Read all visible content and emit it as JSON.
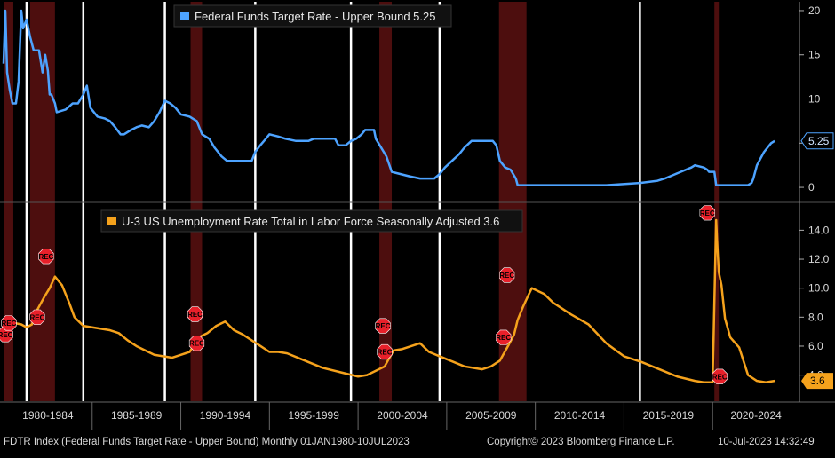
{
  "chart_data": [
    {
      "type": "line",
      "title": "Federal Funds Target Rate - Upper Bound",
      "legend_label": "Federal Funds Target Rate - Upper Bound 5.25",
      "last_value": 5.25,
      "last_value_label": "5.25",
      "color": "#4da3ff",
      "ylim": [
        -1.5,
        21
      ],
      "yticks": [
        0,
        5,
        10,
        15,
        20
      ],
      "ytick_labels": [
        "0",
        "5",
        "10",
        "15",
        "20"
      ],
      "x": [
        1980.0,
        1980.1,
        1980.2,
        1980.35,
        1980.5,
        1980.7,
        1980.85,
        1981.0,
        1981.1,
        1981.3,
        1981.5,
        1981.7,
        1981.85,
        1982.0,
        1982.2,
        1982.35,
        1982.5,
        1982.6,
        1982.7,
        1982.9,
        1983.0,
        1983.5,
        1983.9,
        1984.2,
        1984.5,
        1984.7,
        1984.9,
        1985.3,
        1985.7,
        1986.0,
        1986.3,
        1986.6,
        1986.8,
        1987.2,
        1987.5,
        1987.8,
        1988.2,
        1988.5,
        1988.8,
        1989.1,
        1989.4,
        1989.7,
        1990.0,
        1990.5,
        1990.9,
        1991.2,
        1991.6,
        1991.9,
        1992.3,
        1992.6,
        1993.5,
        1994.0,
        1994.2,
        1994.5,
        1994.8,
        1995.0,
        1995.5,
        1995.9,
        1996.5,
        1997.2,
        1997.5,
        1998.0,
        1998.7,
        1998.9,
        1999.3,
        1999.6,
        1999.9,
        2000.2,
        2000.4,
        2000.9,
        2001.0,
        2001.3,
        2001.6,
        2001.9,
        2002.9,
        2003.5,
        2004.3,
        2004.6,
        2004.9,
        2005.3,
        2005.7,
        2006.0,
        2006.4,
        2007.6,
        2007.8,
        2008.0,
        2008.3,
        2008.6,
        2008.9,
        2009.0,
        2010,
        2012,
        2014,
        2015.9,
        2016.9,
        2017.3,
        2017.6,
        2017.9,
        2018.2,
        2018.5,
        2018.8,
        2019.0,
        2019.5,
        2019.7,
        2019.8,
        2020.1,
        2020.2,
        2020.5,
        2021,
        2021.5,
        2022.0,
        2022.2,
        2022.3,
        2022.4,
        2022.5,
        2022.7,
        2022.9,
        2023.1,
        2023.3,
        2023.5
      ],
      "values": [
        14,
        20,
        13,
        11,
        9.5,
        9.5,
        12,
        20,
        18,
        19,
        17,
        15.5,
        15.5,
        15.5,
        13,
        15,
        13.2,
        10.5,
        10.5,
        9.5,
        8.5,
        8.8,
        9.5,
        9.5,
        10.5,
        11.5,
        9,
        8,
        7.8,
        7.5,
        6.8,
        6.0,
        6.0,
        6.5,
        6.8,
        7.0,
        6.8,
        7.5,
        8.5,
        9.8,
        9.5,
        9.0,
        8.25,
        8.0,
        7.5,
        6.0,
        5.5,
        4.5,
        3.5,
        3.0,
        3.0,
        3.0,
        4.0,
        4.8,
        5.5,
        6.0,
        5.75,
        5.5,
        5.25,
        5.25,
        5.5,
        5.5,
        5.5,
        4.75,
        4.75,
        5.25,
        5.5,
        6.0,
        6.5,
        6.5,
        5.5,
        4.5,
        3.5,
        1.75,
        1.25,
        1.0,
        1.0,
        1.5,
        2.25,
        3.0,
        3.75,
        4.5,
        5.25,
        5.25,
        4.75,
        3.0,
        2.25,
        2.0,
        1.0,
        0.25,
        0.25,
        0.25,
        0.25,
        0.5,
        0.75,
        1.0,
        1.25,
        1.5,
        1.75,
        2.0,
        2.25,
        2.5,
        2.25,
        2.0,
        1.75,
        1.75,
        0.25,
        0.25,
        0.25,
        0.25,
        0.25,
        0.5,
        1.0,
        1.75,
        2.5,
        3.25,
        4.0,
        4.5,
        5.0,
        5.25
      ]
    },
    {
      "type": "line",
      "title": "U-3 US Unemployment Rate Total in Labor Force Seasonally Adjusted",
      "legend_label": "U-3 US Unemployment Rate Total in Labor Force Seasonally Adjusted 3.6",
      "last_value": 3.6,
      "last_value_label": "3.6",
      "color": "#f5a21c",
      "ylim": [
        2.2,
        15.8
      ],
      "yticks": [
        4,
        6,
        8,
        10,
        12,
        14
      ],
      "ytick_labels": [
        "4.0",
        "6.0",
        "8.0",
        "10.0",
        "12.0",
        "14.0"
      ],
      "x": [
        1980.0,
        1980.3,
        1980.6,
        1981.0,
        1981.3,
        1981.6,
        1981.9,
        1982.3,
        1982.6,
        1982.9,
        1983.3,
        1983.7,
        1984.0,
        1984.5,
        1985.0,
        1985.5,
        1986.0,
        1986.5,
        1987.0,
        1987.5,
        1988.0,
        1988.5,
        1989.0,
        1989.5,
        1990.0,
        1990.5,
        1991.0,
        1991.5,
        1992.0,
        1992.5,
        1993.0,
        1993.5,
        1994.0,
        1994.5,
        1995.0,
        1995.5,
        1996.0,
        1997.0,
        1998.0,
        1999.0,
        2000.0,
        2000.5,
        2001.0,
        2001.5,
        2002.0,
        2002.5,
        2003.0,
        2003.5,
        2004.0,
        2005.0,
        2006.0,
        2007.0,
        2007.5,
        2008.0,
        2008.5,
        2008.8,
        2009.0,
        2009.3,
        2009.6,
        2009.8,
        2010.5,
        2011,
        2012,
        2013,
        2014,
        2015,
        2016,
        2017,
        2018,
        2019,
        2019.5,
        2020.0,
        2020.2,
        2020.25,
        2020.35,
        2020.5,
        2020.7,
        2021.0,
        2021.5,
        2022.0,
        2022.5,
        2023.0,
        2023.5
      ],
      "values": [
        6.3,
        6.9,
        7.6,
        7.5,
        7.3,
        7.5,
        8.5,
        9.4,
        10.0,
        10.8,
        10.2,
        9.0,
        8.0,
        7.4,
        7.3,
        7.2,
        7.1,
        6.9,
        6.4,
        6.0,
        5.7,
        5.4,
        5.3,
        5.2,
        5.4,
        5.6,
        6.6,
        6.9,
        7.4,
        7.7,
        7.1,
        6.8,
        6.4,
        6.0,
        5.6,
        5.6,
        5.5,
        5.0,
        4.5,
        4.2,
        3.9,
        4.0,
        4.3,
        4.6,
        5.7,
        5.8,
        6.0,
        6.2,
        5.6,
        5.1,
        4.6,
        4.4,
        4.6,
        5.0,
        6.1,
        6.8,
        7.8,
        8.7,
        9.5,
        10.0,
        9.6,
        9.0,
        8.2,
        7.5,
        6.2,
        5.3,
        4.9,
        4.4,
        3.9,
        3.6,
        3.5,
        3.5,
        14.7,
        13.3,
        11.1,
        10.2,
        7.9,
        6.6,
        5.9,
        4.0,
        3.6,
        3.5,
        3.6
      ]
    }
  ],
  "x_axis": {
    "xlim": [
      1979.8,
      2024.9
    ],
    "category_labels": [
      "1980-1984",
      "1985-1989",
      "1990-1994",
      "1995-1999",
      "2000-2004",
      "2005-2009",
      "2010-2014",
      "2015-2019",
      "2020-2024"
    ],
    "category_starts": [
      1980,
      1985,
      1990,
      1995,
      2000,
      2005,
      2010,
      2015,
      2020
    ],
    "category_ends": [
      1985,
      1990,
      1995,
      2000,
      2005,
      2010,
      2015,
      2020,
      2025
    ]
  },
  "recessions": [
    [
      1980.0,
      1980.55
    ],
    [
      1981.5,
      1982.9
    ],
    [
      1990.55,
      1991.2
    ],
    [
      2001.2,
      2001.9
    ],
    [
      2007.95,
      2009.5
    ],
    [
      2020.1,
      2020.35
    ]
  ],
  "markers": [
    {
      "year": 1984.5,
      "type": "white-vline"
    },
    {
      "year": 1981.3,
      "type": "white-vline"
    },
    {
      "year": 1989.1,
      "type": "white-vline"
    },
    {
      "year": 1994.2,
      "type": "white-vline"
    },
    {
      "year": 1999.6,
      "type": "white-vline"
    },
    {
      "year": 2004.6,
      "type": "white-vline"
    },
    {
      "year": 2015.9,
      "type": "white-vline"
    }
  ],
  "rec_flags": [
    {
      "year": 1980.1,
      "value": 6.8,
      "label": "REC"
    },
    {
      "year": 1980.3,
      "value": 7.6,
      "label": "REC"
    },
    {
      "year": 1981.9,
      "value": 8.0,
      "label": "REC"
    },
    {
      "year": 1982.4,
      "value": 12.2,
      "label": "REC"
    },
    {
      "year": 1990.8,
      "value": 8.2,
      "label": "REC"
    },
    {
      "year": 1990.9,
      "value": 6.2,
      "label": "REC"
    },
    {
      "year": 2001.4,
      "value": 7.4,
      "label": "REC"
    },
    {
      "year": 2001.5,
      "value": 5.6,
      "label": "REC"
    },
    {
      "year": 2008.4,
      "value": 10.9,
      "label": "REC"
    },
    {
      "year": 2008.2,
      "value": 6.6,
      "label": "REC"
    },
    {
      "year": 2019.7,
      "value": 15.2,
      "label": "REC"
    },
    {
      "year": 2020.4,
      "value": 3.9,
      "label": "REC"
    }
  ],
  "footer": {
    "left": "FDTR Index (Federal Funds Target Rate - Upper Bound)  Monthly 01JAN1980-10JUL2023",
    "center": "Copyright© 2023 Bloomberg Finance L.P.",
    "right": "10-Jul-2023 14:32:49"
  }
}
